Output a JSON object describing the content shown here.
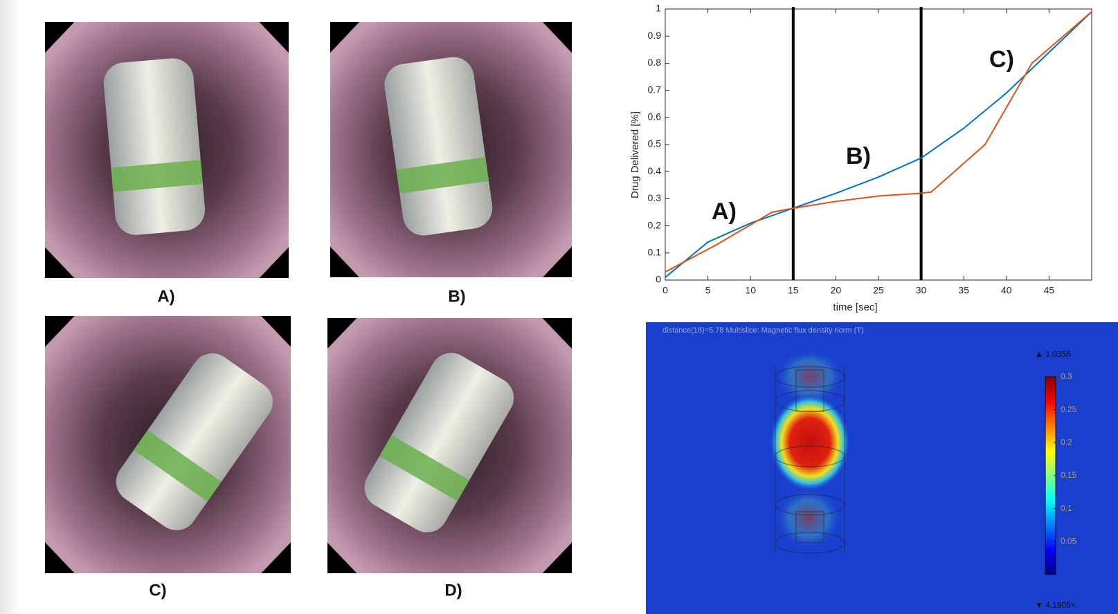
{
  "photos": [
    {
      "label": "A)"
    },
    {
      "label": "B)"
    },
    {
      "label": "C)"
    },
    {
      "label": "D)"
    }
  ],
  "chart_data": {
    "type": "line",
    "x_label": "time [sec]",
    "y_label": "Drug Delivered [%]",
    "xlim": [
      0,
      50
    ],
    "xticks": [
      0,
      5,
      10,
      15,
      20,
      25,
      30,
      35,
      40,
      45
    ],
    "ylim": [
      0,
      1
    ],
    "yticks": [
      0,
      0.1,
      0.2,
      0.3,
      0.4,
      0.5,
      0.6,
      0.7,
      0.8,
      0.9,
      1
    ],
    "vlines": [
      15,
      30
    ],
    "annotations": [
      "A)",
      "B)",
      "C)"
    ],
    "series": [
      {
        "color": "#0072bd",
        "x": [
          0,
          5,
          10,
          15,
          20,
          25,
          30,
          35,
          40,
          45,
          50
        ],
        "values": [
          0.01,
          0.14,
          0.21,
          0.265,
          0.32,
          0.38,
          0.45,
          0.56,
          0.69,
          0.84,
          0.99
        ]
      },
      {
        "color": "#d95319",
        "x": [
          0,
          6,
          12.5,
          15,
          20,
          25,
          30,
          31.2,
          37.5,
          43,
          50
        ],
        "values": [
          0.03,
          0.13,
          0.25,
          0.265,
          0.29,
          0.31,
          0.32,
          0.325,
          0.5,
          0.8,
          0.99
        ]
      }
    ]
  },
  "simulation": {
    "header": "distance(18)=5.78   Multislice: Magnetic flux density norm (T)",
    "max_label": "▲ 1.0356",
    "min_label": "▼ 4.1905×",
    "colorbar_lim": [
      0,
      0.3
    ],
    "colorbar_ticks": [
      0.3,
      0.25,
      0.2,
      0.15,
      0.1,
      0.05
    ]
  }
}
